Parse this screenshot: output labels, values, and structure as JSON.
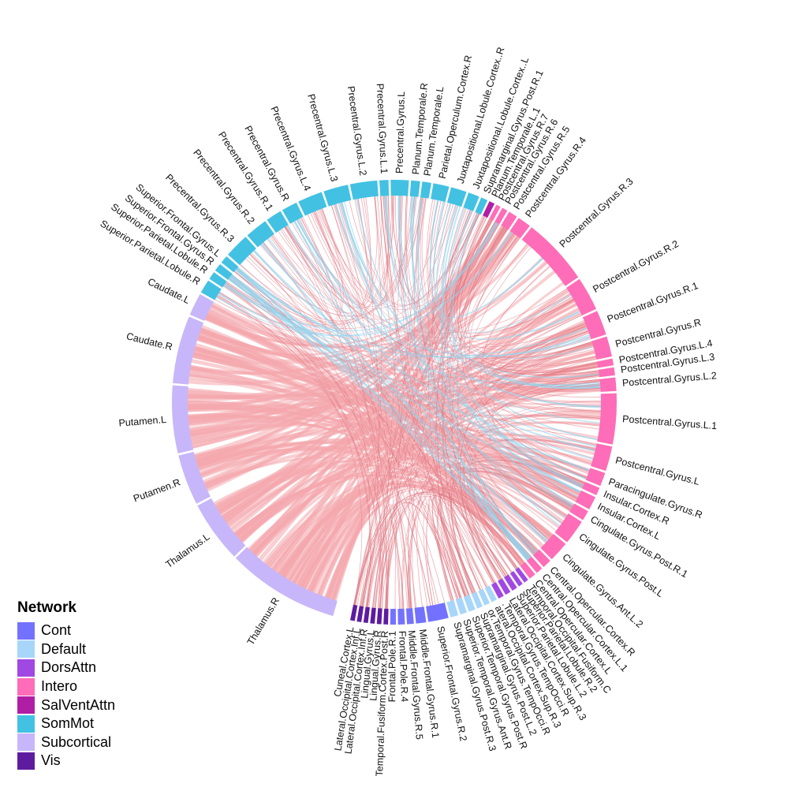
{
  "legend": {
    "title": "Network",
    "items": [
      {
        "label": "Cont",
        "color": "#7372ff"
      },
      {
        "label": "Default",
        "color": "#a8d6fb"
      },
      {
        "label": "DorsAttn",
        "color": "#a048e2"
      },
      {
        "label": "Intero",
        "color": "#ff6cb7"
      },
      {
        "label": "SalVentAttn",
        "color": "#b01ea5"
      },
      {
        "label": "SomMot",
        "color": "#42c1e3"
      },
      {
        "label": "Subcortical",
        "color": "#c8b6fa"
      },
      {
        "label": "Vis",
        "color": "#5d1c9f"
      }
    ]
  },
  "chord": {
    "link_colors": {
      "main": "#f4a7ad",
      "somatomotor": "#8fd6f0"
    },
    "regions": [
      {
        "name": "Thalamus.R",
        "network": "Subcortical",
        "size": 10
      },
      {
        "name": "Thalamus.L",
        "network": "Subcortical",
        "size": 5.5
      },
      {
        "name": "Putamen.R",
        "network": "Subcortical",
        "size": 4.5
      },
      {
        "name": "Putamen.L",
        "network": "Subcortical",
        "size": 6
      },
      {
        "name": "Caudate.R",
        "network": "Subcortical",
        "size": 6
      },
      {
        "name": "Caudate.L",
        "network": "Subcortical",
        "size": 2
      },
      {
        "name": "Superior.Parietal.Lobule.R",
        "network": "SomMot",
        "size": 1.2
      },
      {
        "name": "Superior.Parietal.Lobule.R",
        "network": "SomMot",
        "size": 0.7
      },
      {
        "name": "Superior.Frontal.Gyrus.R",
        "network": "SomMot",
        "size": 0.7
      },
      {
        "name": "Superior.Frontal.Gyrus.L",
        "network": "SomMot",
        "size": 0.7
      },
      {
        "name": "Precentral.Gyrus.R.3",
        "network": "SomMot",
        "size": 2.2
      },
      {
        "name": "Precentral.Gyrus.R.2",
        "network": "SomMot",
        "size": 2
      },
      {
        "name": "Precentral.Gyrus.R.1",
        "network": "SomMot",
        "size": 1.4
      },
      {
        "name": "Precentral.Gyrus.R",
        "network": "SomMot",
        "size": 1.4
      },
      {
        "name": "Precentral.Gyrus.L.4",
        "network": "SomMot",
        "size": 2.2
      },
      {
        "name": "Precentral.Gyrus.L.3",
        "network": "SomMot",
        "size": 2.2
      },
      {
        "name": "Precentral.Gyrus.L.2",
        "network": "SomMot",
        "size": 2.4
      },
      {
        "name": "Precentral.Gyrus.L.1",
        "network": "SomMot",
        "size": 0.8
      },
      {
        "name": "Precentral.Gyrus.L",
        "network": "SomMot",
        "size": 1.6
      },
      {
        "name": "Planum.Temporale.R",
        "network": "SomMot",
        "size": 0.8
      },
      {
        "name": "Planum.Temporale.L",
        "network": "SomMot",
        "size": 0.8
      },
      {
        "name": "Parietal.Operculum.Cortex.R",
        "network": "SomMot",
        "size": 1.4
      },
      {
        "name": "Juxtapositional.Lobule.Cortex..R",
        "network": "SomMot",
        "size": 1.4
      },
      {
        "name": "Juxtapositional.Lobule.Cortex..L",
        "network": "SomMot",
        "size": 1
      },
      {
        "name": "Supramarginal.Gyrus.Post.R.1",
        "network": "SomMot",
        "size": 0.6
      },
      {
        "name": "Planum.Temporale.L.1",
        "network": "SalVentAttn",
        "size": 0.5
      },
      {
        "name": "Postcentral.Gyrus.R.7",
        "network": "Intero",
        "size": 0.4
      },
      {
        "name": "Postcentral.Gyrus.R.6",
        "network": "Intero",
        "size": 0.5
      },
      {
        "name": "Postcentral.Gyrus.R.5",
        "network": "Intero",
        "size": 0.8
      },
      {
        "name": "Postcentral.Gyrus.R.4",
        "network": "Intero",
        "size": 1.2
      },
      {
        "name": "Postcentral.Gyrus.R.3",
        "network": "Intero",
        "size": 6
      },
      {
        "name": "Postcentral.Gyrus.R.2",
        "network": "Intero",
        "size": 3
      },
      {
        "name": "Postcentral.Gyrus.R.1",
        "network": "Intero",
        "size": 2.2
      },
      {
        "name": "Postcentral.Gyrus.R",
        "network": "Intero",
        "size": 1.8
      },
      {
        "name": "Postcentral.Gyrus.L.4",
        "network": "Intero",
        "size": 0.6
      },
      {
        "name": "Postcentral.Gyrus.L.3",
        "network": "Intero",
        "size": 0.7
      },
      {
        "name": "Postcentral.Gyrus.L.2",
        "network": "Intero",
        "size": 1.2
      },
      {
        "name": "Postcentral.Gyrus.L.1",
        "network": "Intero",
        "size": 4.5
      },
      {
        "name": "Postcentral.Gyrus.L",
        "network": "Intero",
        "size": 2.2
      },
      {
        "name": "Paracingulate.Gyrus.R",
        "network": "Intero",
        "size": 1.2
      },
      {
        "name": "Insular.Cortex.R",
        "network": "Intero",
        "size": 0.7
      },
      {
        "name": "Insular.Cortex.L",
        "network": "Intero",
        "size": 1.2
      },
      {
        "name": "Cingulate.Gyrus.Post.R.1",
        "network": "Intero",
        "size": 0.9
      },
      {
        "name": "Cingulate.Gyrus.Post.L",
        "network": "Intero",
        "size": 2.2
      },
      {
        "name": "Cingulate.Gyrus.Ant.L.2",
        "network": "Intero",
        "size": 1.8
      },
      {
        "name": "Central.Opercular.Cortex.R",
        "network": "Intero",
        "size": 0.8
      },
      {
        "name": "Central.Opercular.Cortex.L.1",
        "network": "Intero",
        "size": 0.6
      },
      {
        "name": "Central.Opercular.Cortex.L",
        "network": "Intero",
        "size": 0.6
      },
      {
        "name": "Temporal.Occipital.Fusiform.C",
        "network": "DorsAttn",
        "size": 0.4
      },
      {
        "name": "Superior.Parietal.Lobule.R.2",
        "network": "DorsAttn",
        "size": 0.4
      },
      {
        "name": "Superior.Parietal.Lobule.L.2",
        "network": "DorsAttn",
        "size": 0.5
      },
      {
        "name": "Lateral.Occipital.Cortex.Sup.R.3",
        "network": "DorsAttn",
        "size": 0.5
      },
      {
        "name": ".Temporal.Gyrus.TempOcci.R",
        "network": "DorsAttn",
        "size": 0.5
      },
      {
        "name": "ateral.Occipital.Cortex.Sup.R.3",
        "network": "Default",
        "size": 0.5
      },
      {
        "name": "or.Temporal.Gyrus.TempOcci.R",
        "network": "Default",
        "size": 0.5
      },
      {
        "name": "Supramarginal.Gyrus.Post.L.2",
        "network": "Default",
        "size": 0.5
      },
      {
        "name": "Superior.Temporal.Gyrus.Post.R",
        "network": "Default",
        "size": 0.6
      },
      {
        "name": "Superior.Temporal.Gyrus.Ant.R",
        "network": "Default",
        "size": 0.6
      },
      {
        "name": "Supramarginal.Gyrus.Post.R.3",
        "network": "Default",
        "size": 0.7
      },
      {
        "name": "Superior.Frontal.Gyrus.R.2",
        "network": "Cont",
        "size": 1.8
      },
      {
        "name": "Middle.Frontal.Gyrus.R.1",
        "network": "Cont",
        "size": 0.9
      },
      {
        "name": "Middle.Frontal.Gyrus.R.5",
        "network": "Cont",
        "size": 0.6
      },
      {
        "name": "Frontal.Pole.R.4",
        "network": "Cont",
        "size": 0.6
      },
      {
        "name": "Frontal.Pole.R.1",
        "network": "Cont",
        "size": 0.5
      },
      {
        "name": "Temporal.Fusiform.Cortex.Post.R",
        "network": "Vis",
        "size": 0.4
      },
      {
        "name": "Lingual.Gyrus.R",
        "network": "Vis",
        "size": 0.4
      },
      {
        "name": "Lingual.Gyrus.L",
        "network": "Vis",
        "size": 0.4
      },
      {
        "name": "Lateral.Occipital.Cortex.Inf.R",
        "network": "Vis",
        "size": 0.4
      },
      {
        "name": "Lateral.Occipital.Cortex.Inf.L",
        "network": "Vis",
        "size": 0.4
      },
      {
        "name": "Cuneal.Cortex.L",
        "network": "Vis",
        "size": 0.4
      }
    ]
  }
}
